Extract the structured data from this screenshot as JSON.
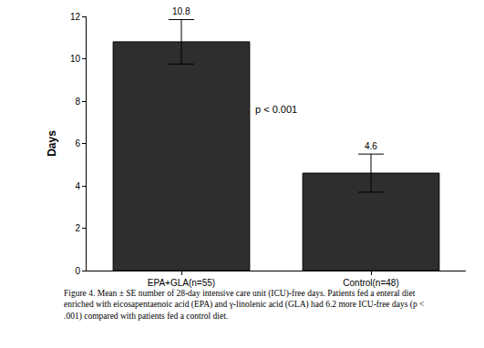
{
  "chart_data": {
    "type": "bar",
    "categories": [
      "EPA+GLA(n=55)",
      "Control(n=48)"
    ],
    "values": [
      10.8,
      4.6
    ],
    "errors": [
      1.05,
      0.9
    ],
    "color": "#2e2e2e",
    "y_label": "Days",
    "ylim": [
      0,
      12
    ],
    "yticks": [
      0,
      2,
      4,
      6,
      8,
      10,
      12
    ],
    "grid": false,
    "data_labels": true,
    "annotations": [
      {
        "text": "p < 0.001",
        "x": 0.5,
        "y": 7.6
      }
    ],
    "caption": [
      "Figure 4. Mean ± SE number of 28-day intensive care unit (ICU)-free days. Patients fed a enteral diet",
      "enriched with eicosapentaenoic acid (EPA) and γ-linolenic acid (GLA) had 6.2 more ICU-free days (p <",
      ".001) compared with patients fed a control diet."
    ]
  }
}
